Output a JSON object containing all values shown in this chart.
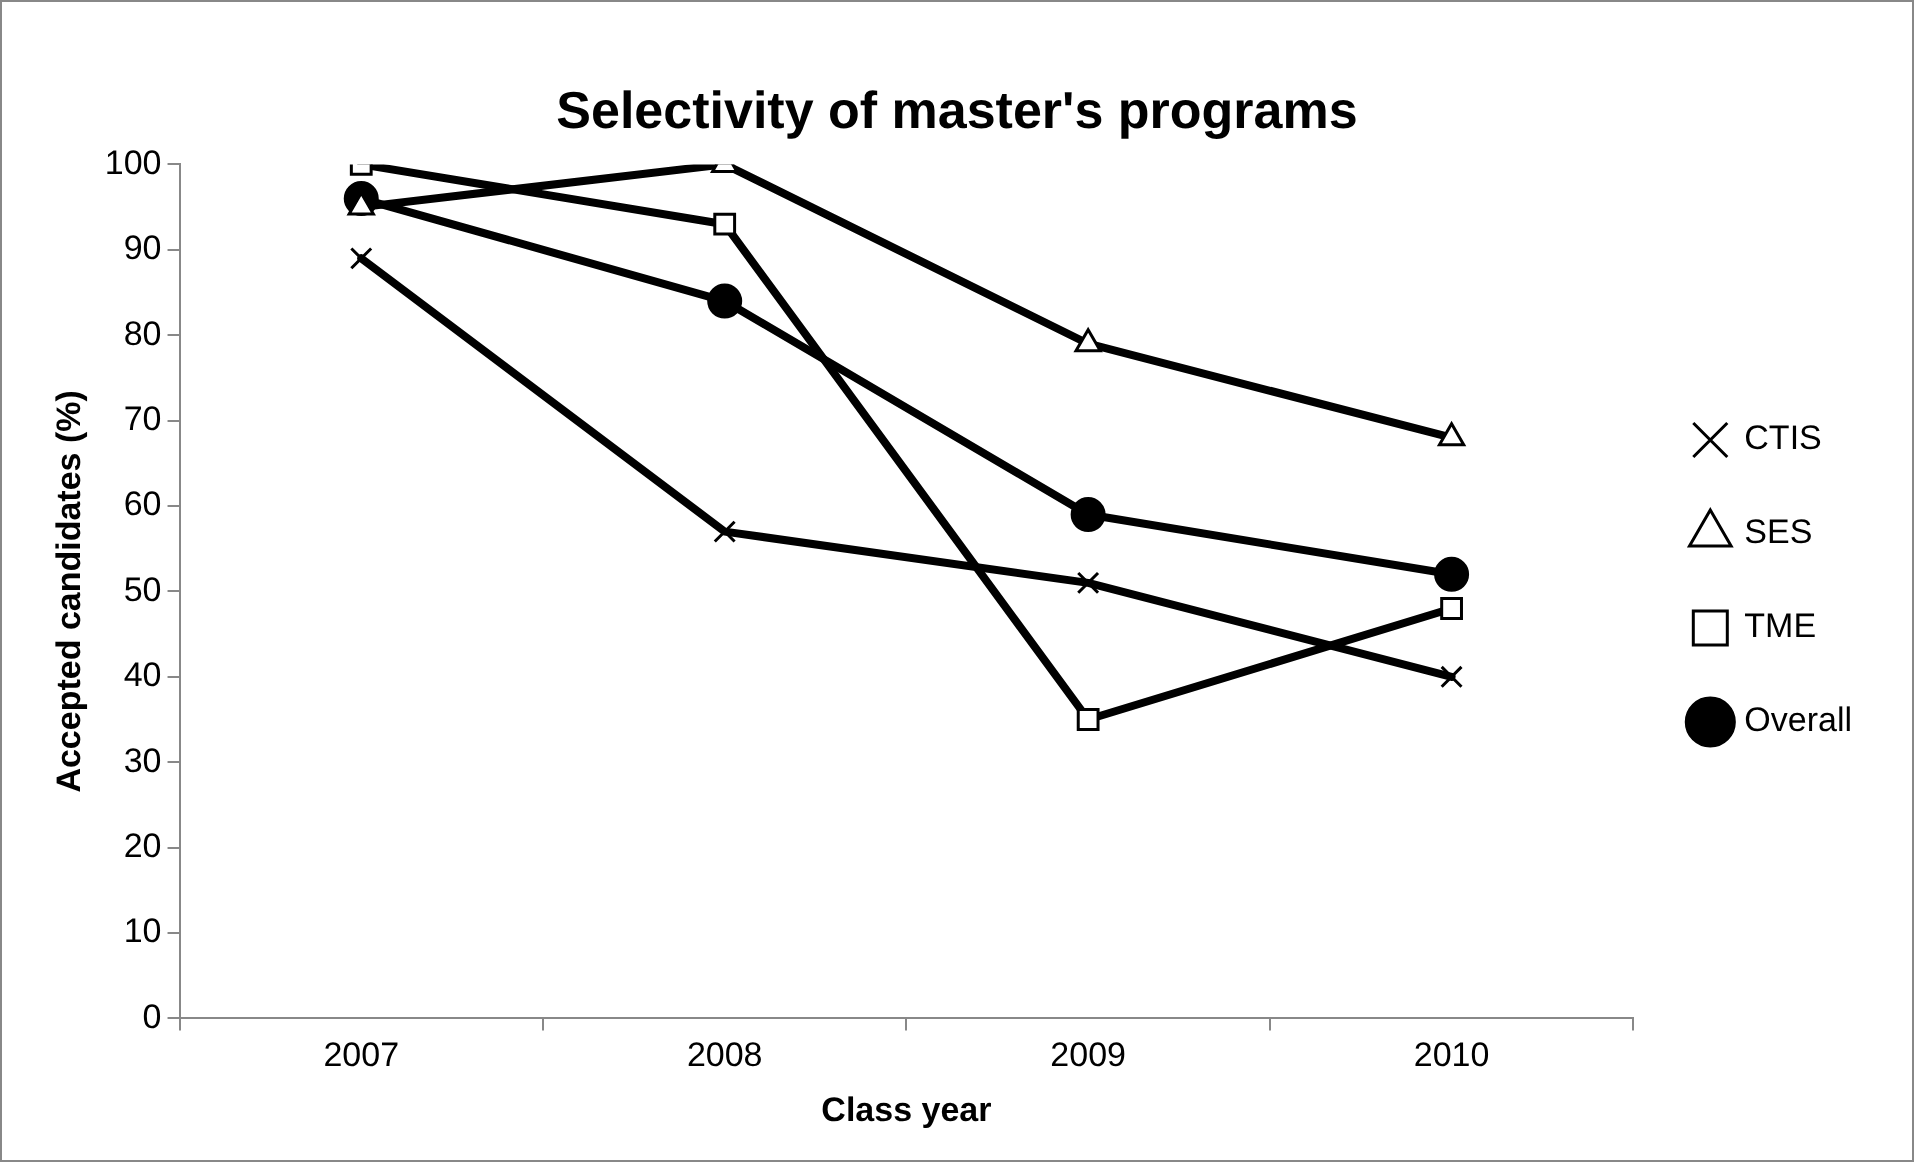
{
  "chart_data": {
    "type": "line",
    "title": "Selectivity of master's programs",
    "xlabel": "Class year",
    "ylabel": "Accepted candidates (%)",
    "categories": [
      "2007",
      "2008",
      "2009",
      "2010"
    ],
    "series": [
      {
        "name": "CTIS",
        "color": "#000000",
        "marker": "cross",
        "values": [
          89,
          57,
          51,
          40
        ]
      },
      {
        "name": "SES",
        "color": "#000000",
        "marker": "triangle",
        "values": [
          95,
          100,
          79,
          68
        ]
      },
      {
        "name": "TME",
        "color": "#000000",
        "marker": "square",
        "values": [
          100,
          93,
          35,
          48
        ]
      },
      {
        "name": "Overall",
        "color": "#000000",
        "marker": "circle",
        "values": [
          96,
          84,
          59,
          52
        ]
      }
    ],
    "ylim": [
      0,
      100
    ],
    "yticks": [
      0,
      10,
      20,
      30,
      40,
      50,
      60,
      70,
      80,
      90,
      100
    ],
    "grid": false,
    "legend": "right",
    "line_style": "solid"
  }
}
